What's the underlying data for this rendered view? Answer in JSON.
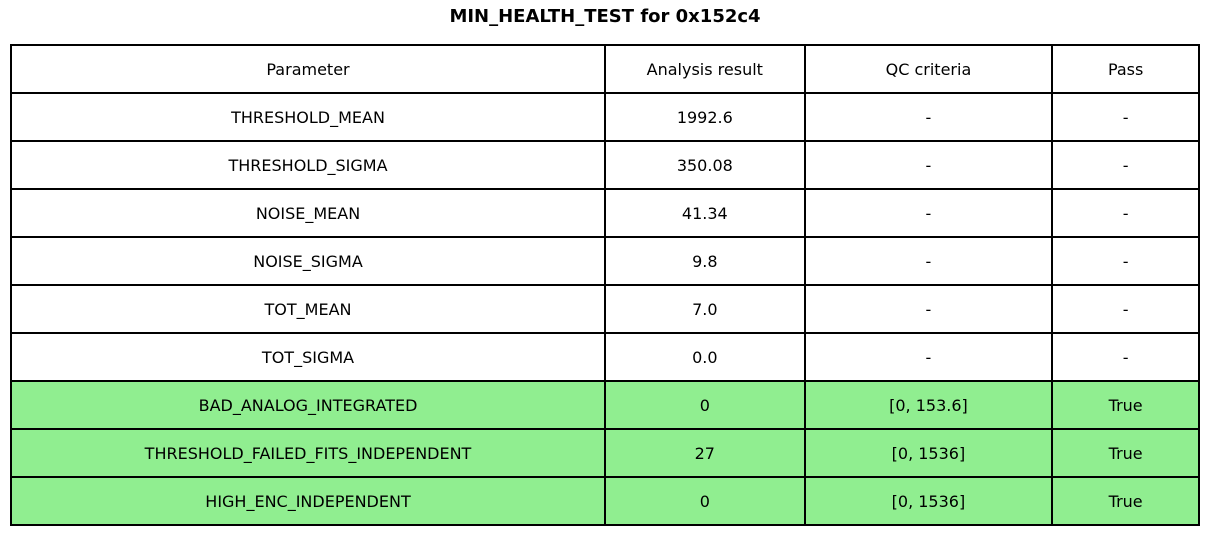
{
  "title": "MIN_HEALTH_TEST for 0x152c4",
  "colors": {
    "pass_green": "#90EE90",
    "border": "#000000",
    "background": "#ffffff",
    "text": "#000000"
  },
  "table": {
    "headers": [
      "Parameter",
      "Analysis result",
      "QC criteria",
      "Pass"
    ],
    "rows": [
      {
        "parameter": "THRESHOLD_MEAN",
        "analysis_result": "1992.6",
        "qc_criteria": "-",
        "pass": "-",
        "highlight": false
      },
      {
        "parameter": "THRESHOLD_SIGMA",
        "analysis_result": "350.08",
        "qc_criteria": "-",
        "pass": "-",
        "highlight": false
      },
      {
        "parameter": "NOISE_MEAN",
        "analysis_result": "41.34",
        "qc_criteria": "-",
        "pass": "-",
        "highlight": false
      },
      {
        "parameter": "NOISE_SIGMA",
        "analysis_result": "9.8",
        "qc_criteria": "-",
        "pass": "-",
        "highlight": false
      },
      {
        "parameter": "TOT_MEAN",
        "analysis_result": "7.0",
        "qc_criteria": "-",
        "pass": "-",
        "highlight": false
      },
      {
        "parameter": "TOT_SIGMA",
        "analysis_result": "0.0",
        "qc_criteria": "-",
        "pass": "-",
        "highlight": false
      },
      {
        "parameter": "BAD_ANALOG_INTEGRATED",
        "analysis_result": "0",
        "qc_criteria": "[0, 153.6]",
        "pass": "True",
        "highlight": true
      },
      {
        "parameter": "THRESHOLD_FAILED_FITS_INDEPENDENT",
        "analysis_result": "27",
        "qc_criteria": "[0, 1536]",
        "pass": "True",
        "highlight": true
      },
      {
        "parameter": "HIGH_ENC_INDEPENDENT",
        "analysis_result": "0",
        "qc_criteria": "[0, 1536]",
        "pass": "True",
        "highlight": true
      }
    ]
  }
}
